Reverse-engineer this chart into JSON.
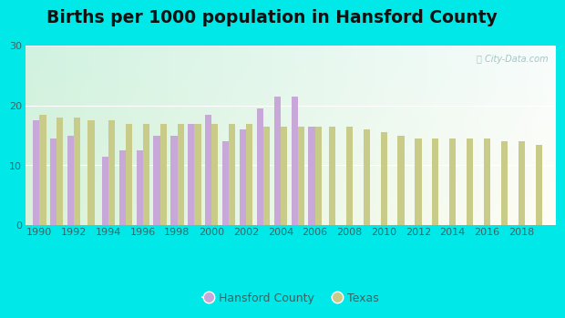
{
  "title": "Births per 1000 population in Hansford County",
  "hansford_color": "#c8a8d8",
  "texas_color": "#c8cc88",
  "outer_background": "#00e8e8",
  "ylim": [
    0,
    30
  ],
  "yticks": [
    0,
    10,
    20,
    30
  ],
  "bar_width": 0.38,
  "title_fontsize": 13.5,
  "watermark": "ⓘ City-Data.com",
  "hansford_data": {
    "1990": 17.5,
    "1991": 14.5,
    "1992": 15.0,
    "1994": 11.5,
    "1995": 12.5,
    "1996": 12.5,
    "1997": 15.0,
    "1998": 15.0,
    "1999": 17.0,
    "2000": 18.5,
    "2001": 14.0,
    "2002": 16.0,
    "2003": 19.5,
    "2004": 21.5,
    "2005": 21.5,
    "2006": 16.5
  },
  "texas_data": {
    "1990": 18.5,
    "1991": 18.0,
    "1992": 18.0,
    "1993": 17.5,
    "1994": 17.5,
    "1995": 17.0,
    "1996": 17.0,
    "1997": 17.0,
    "1998": 17.0,
    "1999": 17.0,
    "2000": 17.0,
    "2001": 17.0,
    "2002": 17.0,
    "2003": 16.5,
    "2004": 16.5,
    "2005": 16.5,
    "2006": 16.5,
    "2007": 16.5,
    "2008": 16.5,
    "2009": 16.0,
    "2010": 15.5,
    "2011": 15.0,
    "2012": 14.5,
    "2013": 14.5,
    "2014": 14.5,
    "2015": 14.5,
    "2016": 14.5,
    "2017": 14.0,
    "2018": 14.0,
    "2019": 13.5
  },
  "xlim_left": 1989.2,
  "xlim_right": 2020.0
}
